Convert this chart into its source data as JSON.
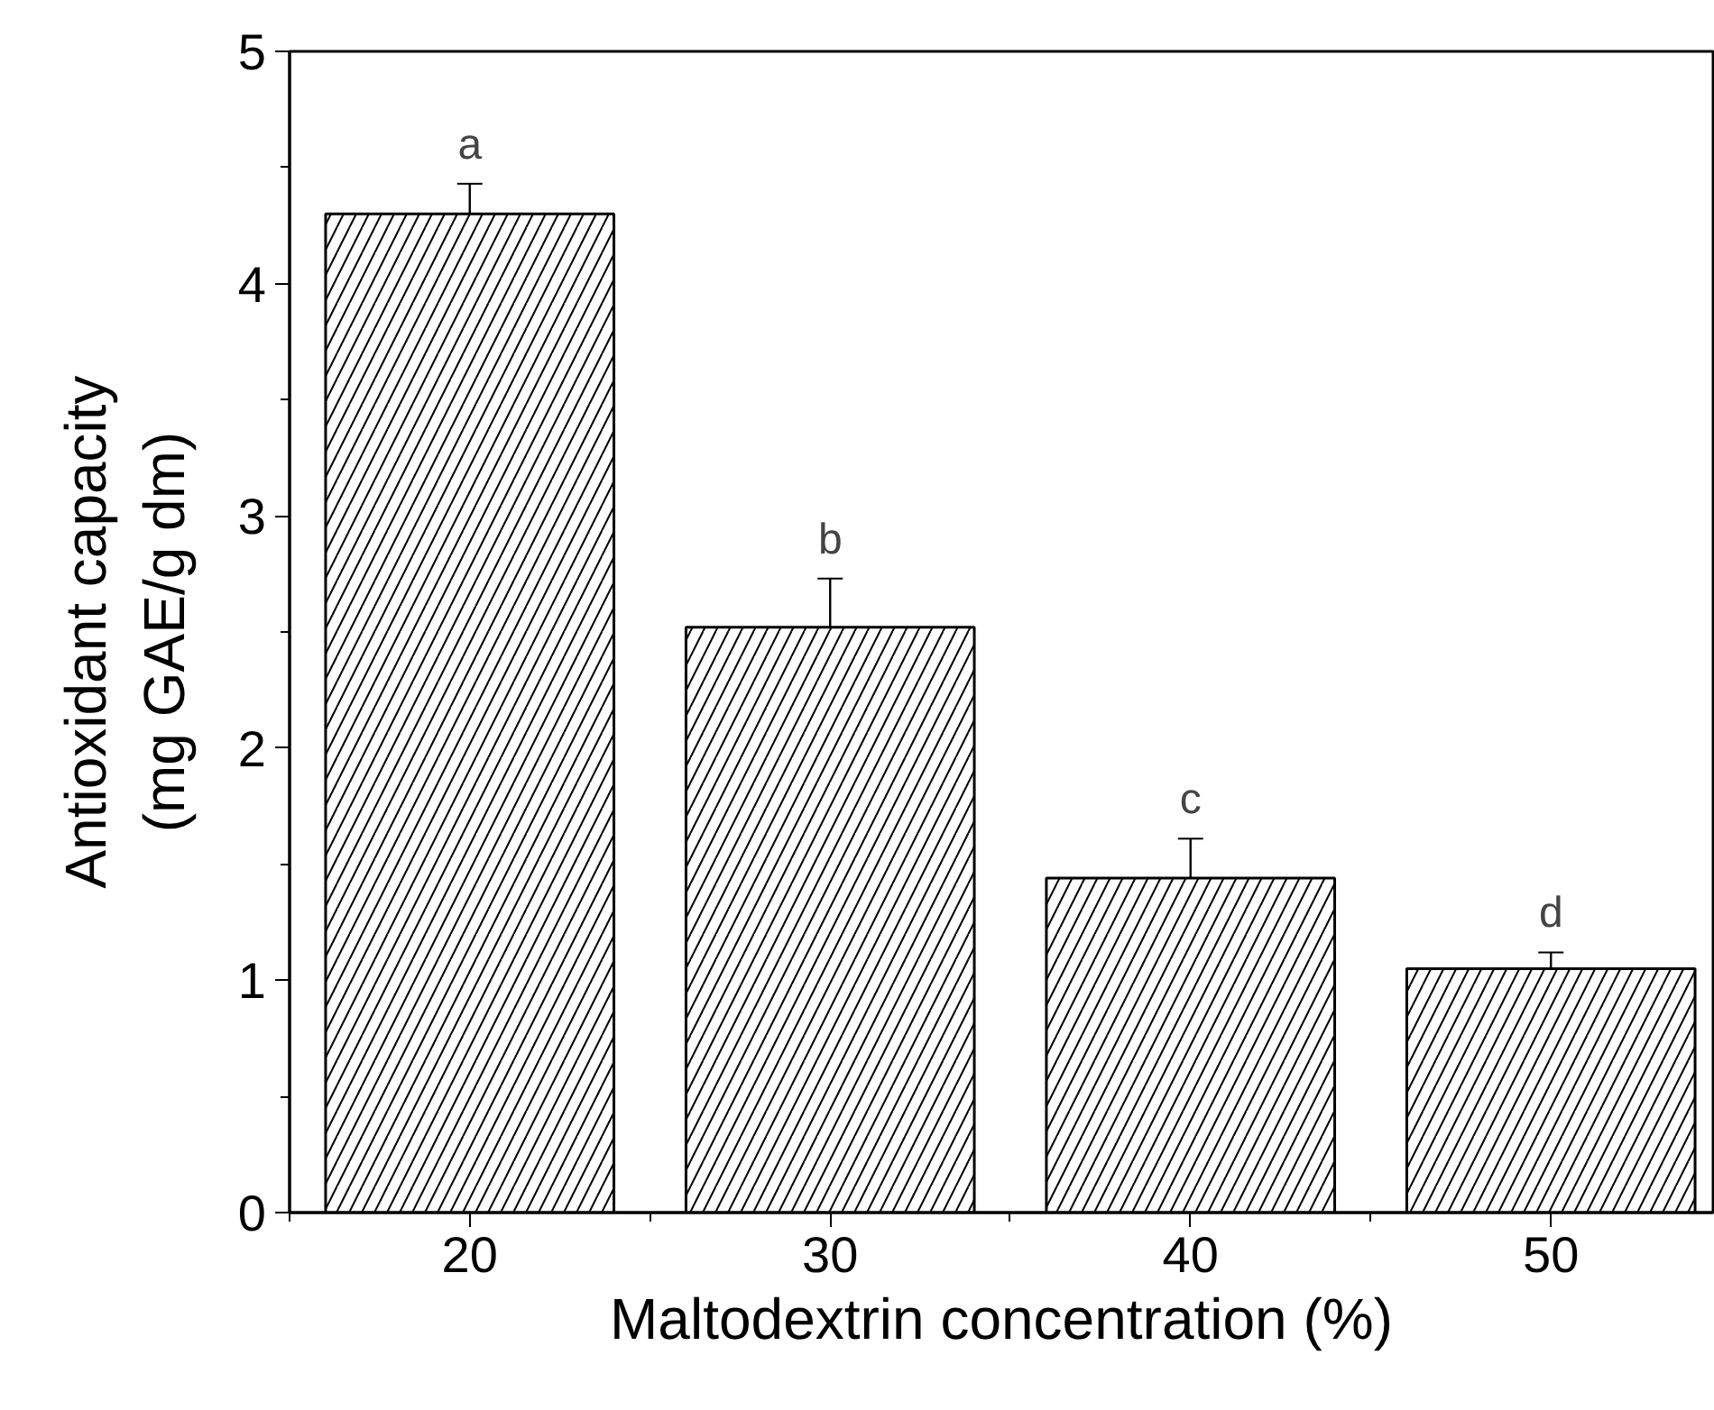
{
  "chart_data": {
    "type": "bar",
    "xlabel": "Maltodextrin concentration (%)",
    "ylabel": "Antioxidant capacity\n(mg GAE/g dm)",
    "categories": [
      "20",
      "30",
      "40",
      "50"
    ],
    "values": [
      4.3,
      2.52,
      1.44,
      1.05
    ],
    "errors": [
      0.13,
      0.21,
      0.17,
      0.07
    ],
    "color": "#ffffff",
    "ylim": [
      0,
      5
    ],
    "yticks": [
      0,
      1,
      2,
      3,
      4,
      5
    ],
    "grid": false,
    "annotations": [
      {
        "text": "a",
        "x": "20",
        "y": 4.3
      },
      {
        "text": "b",
        "x": "30",
        "y": 2.52
      },
      {
        "text": "c",
        "x": "40",
        "y": 1.44
      },
      {
        "text": "d",
        "x": "50",
        "y": 1.05
      }
    ]
  }
}
